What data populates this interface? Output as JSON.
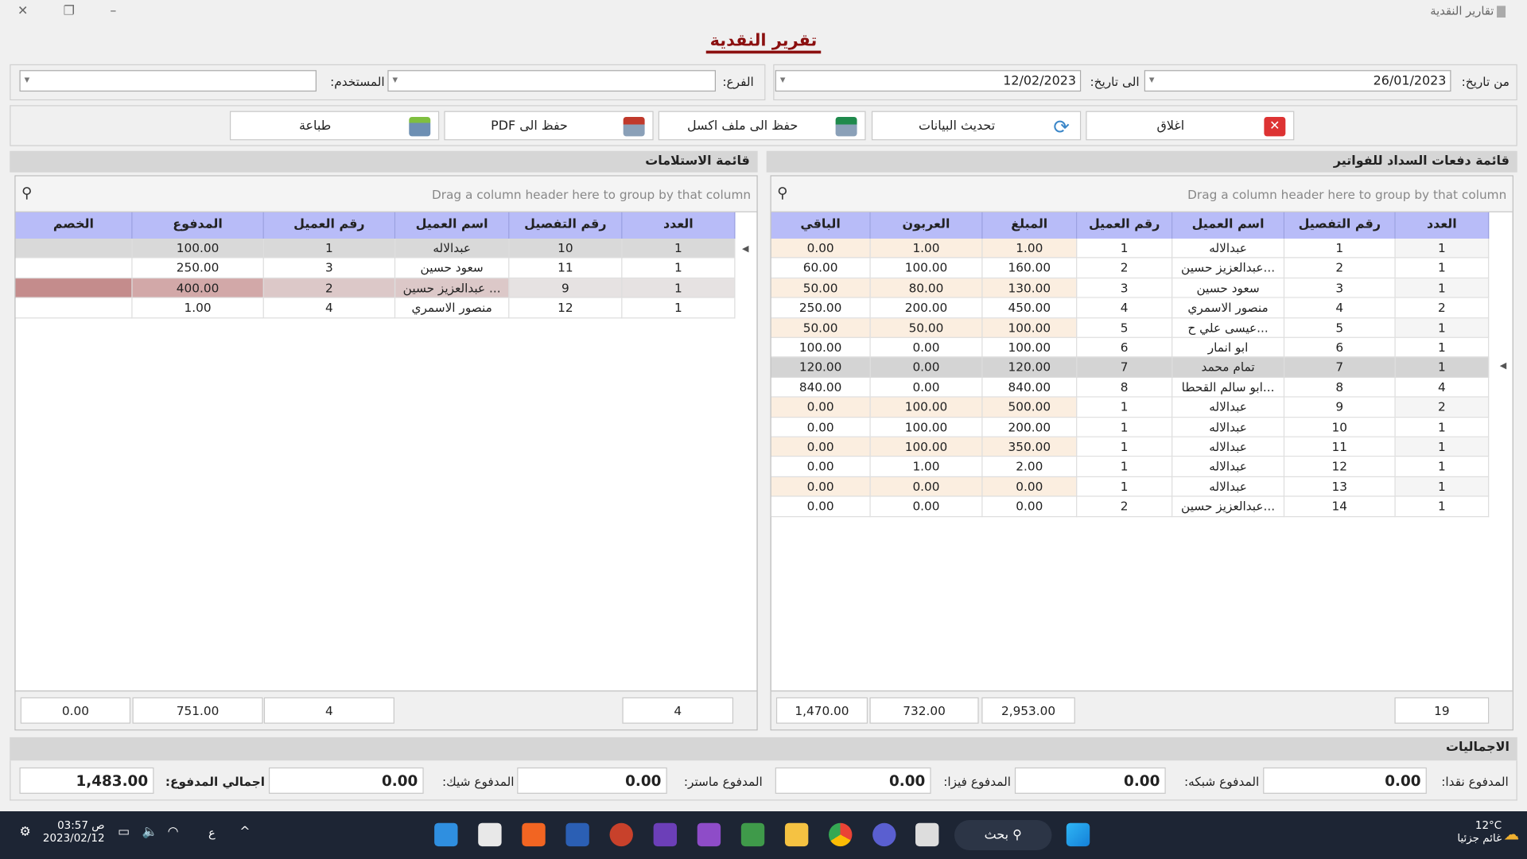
{
  "window": {
    "app_title": "تقارير النقدية",
    "close": "✕",
    "restore": "❐",
    "minimize": "–"
  },
  "heading": "تقرير النقدية",
  "filters": {
    "from_label": "من تاريخ:",
    "from_value": "26/01/2023",
    "to_label": "الى تاريخ:",
    "to_value": "12/02/2023",
    "branch_label": "الفرع:",
    "branch_value": "",
    "user_label": "المستخدم:",
    "user_value": ""
  },
  "toolbar": {
    "close": "اغلاق",
    "refresh": "تحديث البيانات",
    "excel": "حفظ الى ملف اكسل",
    "pdf": "حفظ الى PDF",
    "print": "طباعة"
  },
  "payments": {
    "title": "قائمة دفعات السداد للفواتير",
    "group_hint": "Drag a column header here to group by that column",
    "columns": [
      "العدد",
      "رقم التفصيل",
      "اسم العميل",
      "رقم العميل",
      "المبلغ",
      "العربون",
      "الباقي"
    ],
    "rows": [
      [
        "1",
        "1",
        "عبدالاله",
        "1",
        "1.00",
        "1.00",
        "0.00"
      ],
      [
        "1",
        "2",
        "عبدالعزيز حسين...",
        "2",
        "160.00",
        "100.00",
        "60.00"
      ],
      [
        "1",
        "3",
        "سعود حسين",
        "3",
        "130.00",
        "80.00",
        "50.00"
      ],
      [
        "2",
        "4",
        "منصور الاسمري",
        "4",
        "450.00",
        "200.00",
        "250.00"
      ],
      [
        "1",
        "5",
        "عيسى علي ح...",
        "5",
        "100.00",
        "50.00",
        "50.00"
      ],
      [
        "1",
        "6",
        "ابو انمار",
        "6",
        "100.00",
        "0.00",
        "100.00"
      ],
      [
        "1",
        "7",
        "تمام محمد",
        "7",
        "120.00",
        "0.00",
        "120.00"
      ],
      [
        "4",
        "8",
        "ابو سالم القحطا...",
        "8",
        "840.00",
        "0.00",
        "840.00"
      ],
      [
        "2",
        "9",
        "عبدالاله",
        "1",
        "500.00",
        "100.00",
        "0.00"
      ],
      [
        "1",
        "10",
        "عبدالاله",
        "1",
        "200.00",
        "100.00",
        "0.00"
      ],
      [
        "1",
        "11",
        "عبدالاله",
        "1",
        "350.00",
        "100.00",
        "0.00"
      ],
      [
        "1",
        "12",
        "عبدالاله",
        "1",
        "2.00",
        "1.00",
        "0.00"
      ],
      [
        "1",
        "13",
        "عبدالاله",
        "1",
        "0.00",
        "0.00",
        "0.00"
      ],
      [
        "1",
        "14",
        "عبدالعزيز حسين...",
        "2",
        "0.00",
        "0.00",
        "0.00"
      ]
    ],
    "totals": {
      "count": "19",
      "amount": "2,953.00",
      "deposit": "732.00",
      "remaining": "1,470.00"
    }
  },
  "receipts": {
    "title": "قائمة الاستلامات",
    "group_hint": "Drag a column header here to group by that column",
    "columns": [
      "العدد",
      "رقم التفصيل",
      "اسم العميل",
      "رقم العميل",
      "المدفوع",
      "الخصم"
    ],
    "rows": [
      [
        "1",
        "10",
        "عبدالاله",
        "1",
        "100.00",
        ""
      ],
      [
        "1",
        "11",
        "سعود حسين",
        "3",
        "250.00",
        ""
      ],
      [
        "1",
        "9",
        "عبدالعزيز حسين ...",
        "2",
        "400.00",
        ""
      ],
      [
        "1",
        "12",
        "منصور الاسمري",
        "4",
        "1.00",
        ""
      ]
    ],
    "totals": {
      "count": "4",
      "customer": "4",
      "paid": "751.00",
      "discount": "0.00"
    }
  },
  "summary": {
    "title": "الاجماليات",
    "cash_label": "المدفوع نقدا:",
    "cash": "0.00",
    "network_label": "المدفوع شبكه:",
    "network": "0.00",
    "visa_label": "المدفوع فيزا:",
    "visa": "0.00",
    "master_label": "المدفوع ماستر:",
    "master": "0.00",
    "cheque_label": "المدفوع شيك:",
    "cheque": "0.00",
    "total_label": "اجمالي المدفوع:",
    "total": "1,483.00"
  },
  "taskbar": {
    "weather_temp": "12°C",
    "weather_text": "غائم جزئيا",
    "search": "بحث",
    "time": "03:57 ص",
    "date": "2023/02/12",
    "lang": "ع"
  }
}
